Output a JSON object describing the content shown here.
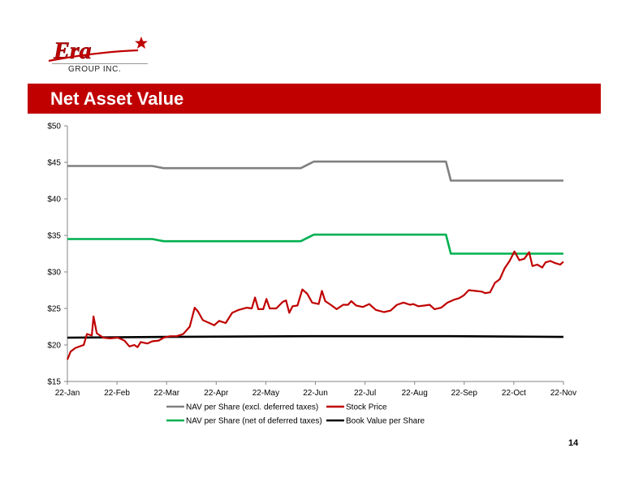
{
  "brand": {
    "logo_text": "Era",
    "logo_sub": "GROUP INC.",
    "colors": {
      "red": "#c00000",
      "gray": "#808080",
      "green": "#00b050",
      "black": "#000000"
    }
  },
  "banner": {
    "title": "Net Asset Value"
  },
  "page_number": "14",
  "chart_data": {
    "type": "line",
    "x_ticks": [
      "22-Jan",
      "22-Feb",
      "22-Mar",
      "22-Apr",
      "22-May",
      "22-Jun",
      "22-Jul",
      "22-Aug",
      "22-Sep",
      "22-Oct",
      "22-Nov"
    ],
    "y_ticks": [
      "$15",
      "$20",
      "$25",
      "$30",
      "$35",
      "$40",
      "$45",
      "$50"
    ],
    "ylim": [
      15,
      50
    ],
    "xlim": [
      "2013-01-22",
      "2013-11-22"
    ],
    "grid": false,
    "legend_position": "bottom",
    "series": [
      {
        "name": "NAV per Share (excl. deferred taxes)",
        "color": "#808080",
        "points": [
          [
            "2013-01-22",
            44.5
          ],
          [
            "2013-03-15",
            44.5
          ],
          [
            "2013-03-22",
            44.2
          ],
          [
            "2013-06-14",
            44.2
          ],
          [
            "2013-06-22",
            45.1
          ],
          [
            "2013-09-11",
            45.1
          ],
          [
            "2013-09-14",
            42.5
          ],
          [
            "2013-11-22",
            42.5
          ]
        ]
      },
      {
        "name": "Stock Price",
        "color": "#c00000",
        "points": [
          [
            "2013-01-22",
            18.0
          ],
          [
            "2013-01-24",
            19.1
          ],
          [
            "2013-01-27",
            19.6
          ],
          [
            "2013-02-01",
            20.0
          ],
          [
            "2013-02-03",
            21.5
          ],
          [
            "2013-02-06",
            21.3
          ],
          [
            "2013-02-07",
            23.9
          ],
          [
            "2013-02-09",
            21.6
          ],
          [
            "2013-02-13",
            21.0
          ],
          [
            "2013-02-17",
            20.9
          ],
          [
            "2013-02-22",
            21.0
          ],
          [
            "2013-02-26",
            20.6
          ],
          [
            "2013-03-01",
            19.8
          ],
          [
            "2013-03-04",
            20.0
          ],
          [
            "2013-03-06",
            19.7
          ],
          [
            "2013-03-08",
            20.4
          ],
          [
            "2013-03-12",
            20.2
          ],
          [
            "2013-03-15",
            20.5
          ],
          [
            "2013-03-19",
            20.6
          ],
          [
            "2013-03-22",
            21.0
          ],
          [
            "2013-03-26",
            21.2
          ],
          [
            "2013-03-30",
            21.2
          ],
          [
            "2013-04-03",
            21.5
          ],
          [
            "2013-04-07",
            22.5
          ],
          [
            "2013-04-10",
            25.1
          ],
          [
            "2013-04-12",
            24.6
          ],
          [
            "2013-04-15",
            23.4
          ],
          [
            "2013-04-19",
            23.0
          ],
          [
            "2013-04-22",
            22.7
          ],
          [
            "2013-04-25",
            23.3
          ],
          [
            "2013-04-29",
            23.0
          ],
          [
            "2013-05-03",
            24.4
          ],
          [
            "2013-05-07",
            24.8
          ],
          [
            "2013-05-12",
            25.1
          ],
          [
            "2013-05-15",
            25.0
          ],
          [
            "2013-05-17",
            26.5
          ],
          [
            "2013-05-19",
            24.9
          ],
          [
            "2013-05-22",
            24.9
          ],
          [
            "2013-05-24",
            26.3
          ],
          [
            "2013-05-26",
            25.0
          ],
          [
            "2013-05-30",
            25.0
          ],
          [
            "2013-06-03",
            25.9
          ],
          [
            "2013-06-05",
            26.1
          ],
          [
            "2013-06-07",
            24.4
          ],
          [
            "2013-06-09",
            25.3
          ],
          [
            "2013-06-12",
            25.4
          ],
          [
            "2013-06-15",
            27.6
          ],
          [
            "2013-06-18",
            27.0
          ],
          [
            "2013-06-21",
            25.8
          ],
          [
            "2013-06-25",
            25.6
          ],
          [
            "2013-06-27",
            27.4
          ],
          [
            "2013-06-29",
            26.0
          ],
          [
            "2013-07-03",
            25.4
          ],
          [
            "2013-07-06",
            24.9
          ],
          [
            "2013-07-10",
            25.5
          ],
          [
            "2013-07-13",
            25.5
          ],
          [
            "2013-07-15",
            26.0
          ],
          [
            "2013-07-18",
            25.4
          ],
          [
            "2013-07-22",
            25.2
          ],
          [
            "2013-07-26",
            25.6
          ],
          [
            "2013-07-30",
            24.8
          ],
          [
            "2013-08-04",
            24.5
          ],
          [
            "2013-08-08",
            24.7
          ],
          [
            "2013-08-12",
            25.5
          ],
          [
            "2013-08-16",
            25.8
          ],
          [
            "2013-08-20",
            25.5
          ],
          [
            "2013-08-22",
            25.6
          ],
          [
            "2013-08-25",
            25.3
          ],
          [
            "2013-08-29",
            25.4
          ],
          [
            "2013-09-01",
            25.5
          ],
          [
            "2013-09-04",
            24.9
          ],
          [
            "2013-09-08",
            25.1
          ],
          [
            "2013-09-12",
            25.8
          ],
          [
            "2013-09-16",
            26.2
          ],
          [
            "2013-09-19",
            26.4
          ],
          [
            "2013-09-22",
            26.8
          ],
          [
            "2013-09-25",
            27.5
          ],
          [
            "2013-09-29",
            27.4
          ],
          [
            "2013-10-03",
            27.3
          ],
          [
            "2013-10-05",
            27.1
          ],
          [
            "2013-10-08",
            27.2
          ],
          [
            "2013-10-11",
            28.5
          ],
          [
            "2013-10-14",
            29.0
          ],
          [
            "2013-10-17",
            30.5
          ],
          [
            "2013-10-20",
            31.5
          ],
          [
            "2013-10-23",
            32.8
          ],
          [
            "2013-10-26",
            31.6
          ],
          [
            "2013-10-29",
            31.8
          ],
          [
            "2013-11-01",
            32.7
          ],
          [
            "2013-11-03",
            30.8
          ],
          [
            "2013-11-06",
            31.0
          ],
          [
            "2013-11-09",
            30.6
          ],
          [
            "2013-11-11",
            31.3
          ],
          [
            "2013-11-14",
            31.5
          ],
          [
            "2013-11-17",
            31.2
          ],
          [
            "2013-11-20",
            31.0
          ],
          [
            "2013-11-22",
            31.4
          ]
        ]
      },
      {
        "name": "NAV per Share (net of deferred taxes)",
        "color": "#00b050",
        "points": [
          [
            "2013-01-22",
            34.5
          ],
          [
            "2013-03-15",
            34.5
          ],
          [
            "2013-03-22",
            34.2
          ],
          [
            "2013-06-14",
            34.2
          ],
          [
            "2013-06-22",
            35.1
          ],
          [
            "2013-09-11",
            35.1
          ],
          [
            "2013-09-14",
            32.5
          ],
          [
            "2013-11-22",
            32.5
          ]
        ]
      },
      {
        "name": "Book Value per Share",
        "color": "#000000",
        "points": [
          [
            "2013-01-22",
            21.0
          ],
          [
            "2013-03-22",
            21.1
          ],
          [
            "2013-06-22",
            21.2
          ],
          [
            "2013-09-14",
            21.2
          ],
          [
            "2013-11-22",
            21.1
          ]
        ]
      }
    ]
  }
}
